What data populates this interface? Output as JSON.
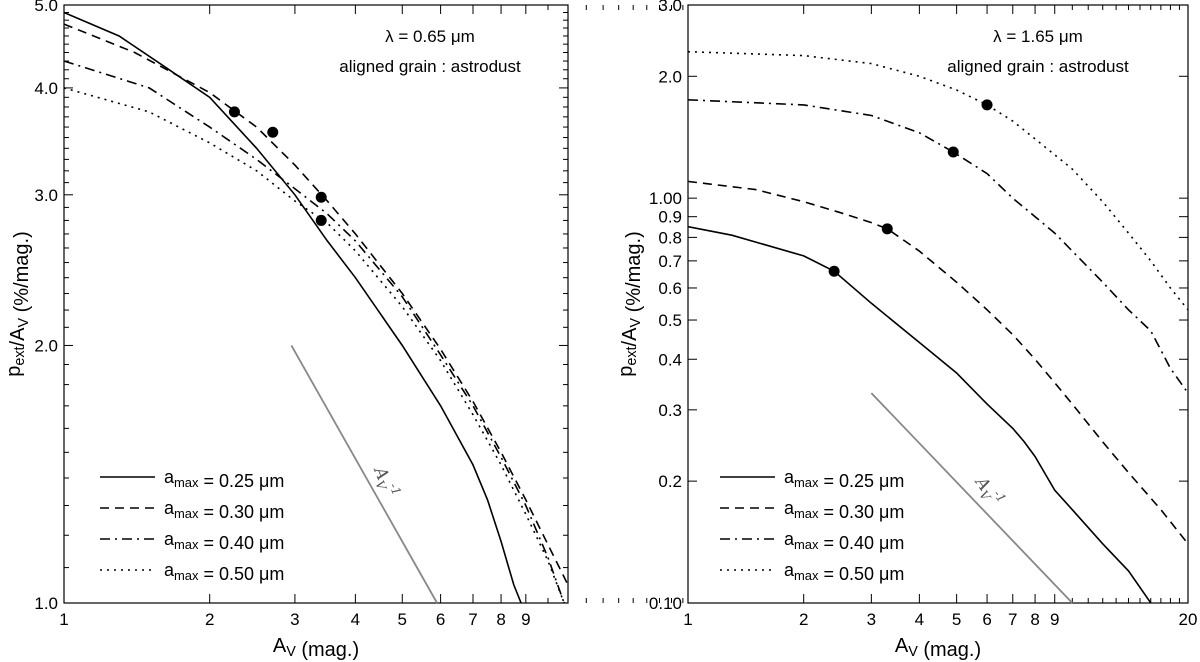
{
  "chart_data": [
    {
      "type": "line",
      "xscale": "log",
      "yscale": "log",
      "xlim": [
        1,
        11
      ],
      "ylim": [
        1.0,
        5.0
      ],
      "xlabel": "A_V (mag.)",
      "ylabel": "p_ext/A_V (%/mag.)",
      "xticks": [
        1,
        2,
        3,
        4,
        5,
        6,
        7,
        8,
        9
      ],
      "xtick_labels": [
        "1",
        "2",
        "3",
        "4",
        "5",
        "6",
        "7",
        "8",
        "9"
      ],
      "yticks": [
        1.0,
        2.0,
        3.0,
        4.0,
        5.0
      ],
      "ytick_labels": [
        "1.0",
        "2.0",
        "3.0",
        "4.0",
        "5.0"
      ],
      "annotations": [
        "λ = 0.65 μm",
        "aligned grain : astrodust"
      ],
      "reference_line": {
        "label": "A_V^-1",
        "x": [
          2.95,
          5.9
        ],
        "y": [
          2.0,
          1.0
        ]
      },
      "legend": [
        "a_max = 0.25 μm",
        "a_max = 0.30 μm",
        "a_max = 0.40 μm",
        "a_max = 0.50 μm"
      ],
      "series": [
        {
          "name": "a_max = 0.25 μm",
          "dash": "solid",
          "x": [
            1.0,
            1.3,
            1.6,
            2.0,
            2.5,
            3.0,
            3.5,
            4.0,
            5.0,
            6.0,
            7.0,
            7.5,
            8.0,
            8.5,
            8.8
          ],
          "y": [
            4.9,
            4.6,
            4.25,
            3.9,
            3.4,
            3.0,
            2.65,
            2.4,
            2.0,
            1.7,
            1.45,
            1.32,
            1.18,
            1.05,
            1.0
          ]
        },
        {
          "name": "a_max = 0.30 μm",
          "dash": "dashed",
          "x": [
            1.0,
            1.4,
            2.0,
            2.5,
            3.0,
            3.5,
            4.0,
            5.0,
            6.0,
            7.0,
            8.0,
            9.0,
            10.0,
            11.0
          ],
          "y": [
            4.75,
            4.4,
            3.95,
            3.6,
            3.25,
            2.95,
            2.7,
            2.3,
            1.98,
            1.72,
            1.5,
            1.32,
            1.17,
            1.05
          ]
        },
        {
          "name": "a_max = 0.40 μm",
          "dash": "dashdot",
          "x": [
            1.0,
            1.5,
            2.0,
            2.5,
            3.0,
            3.5,
            4.0,
            5.0,
            6.0,
            7.0,
            8.0,
            9.0,
            10.0,
            10.8
          ],
          "y": [
            4.3,
            4.0,
            3.6,
            3.3,
            3.05,
            2.85,
            2.65,
            2.28,
            1.95,
            1.7,
            1.48,
            1.3,
            1.13,
            1.0
          ]
        },
        {
          "name": "a_max = 0.50 μm",
          "dash": "dotted",
          "x": [
            1.0,
            1.5,
            2.0,
            2.5,
            3.0,
            3.5,
            4.0,
            5.0,
            6.0,
            7.0,
            8.0,
            9.0,
            10.0,
            10.8
          ],
          "y": [
            4.0,
            3.75,
            3.45,
            3.2,
            2.95,
            2.78,
            2.58,
            2.22,
            1.92,
            1.66,
            1.45,
            1.27,
            1.12,
            1.0
          ]
        }
      ],
      "markers": [
        {
          "series": "a_max = 0.25 μm",
          "x": 3.4,
          "y": 2.8
        },
        {
          "series": "a_max = 0.30 μm",
          "x": 2.7,
          "y": 3.55
        },
        {
          "series": "a_max = 0.40 μm",
          "x": 2.25,
          "y": 3.75
        },
        {
          "series": "a_max = 0.50 μm",
          "x": 3.4,
          "y": 2.98
        }
      ]
    },
    {
      "type": "line",
      "xscale": "log",
      "yscale": "log",
      "xlim": [
        1,
        20
      ],
      "ylim": [
        0.1,
        3.0
      ],
      "xlabel": "A_V (mag.)",
      "ylabel": "p_ext/A_V (%/mag.)",
      "xticks": [
        1,
        2,
        3,
        4,
        5,
        6,
        7,
        8,
        9,
        20
      ],
      "xtick_labels": [
        "1",
        "2",
        "3",
        "4",
        "5",
        "6",
        "7",
        "8",
        "9",
        "20"
      ],
      "yticks": [
        0.1,
        0.2,
        0.3,
        0.4,
        0.5,
        0.6,
        0.7,
        0.8,
        0.9,
        1.0,
        2.0,
        3.0
      ],
      "ytick_labels": [
        "0.10",
        "0.2",
        "0.3",
        "0.4",
        "0.5",
        "0.6",
        "0.7",
        "0.8",
        "0.9",
        "1.00",
        "2.0",
        "3.0"
      ],
      "annotations": [
        "λ = 1.65 μm",
        "aligned grain : astrodust"
      ],
      "reference_line": {
        "label": "A_V^-1",
        "x": [
          3.0,
          10.0
        ],
        "y": [
          0.33,
          0.1
        ]
      },
      "legend": [
        "a_max = 0.25 μm",
        "a_max = 0.30 μm",
        "a_max = 0.40 μm",
        "a_max = 0.50 μm"
      ],
      "series": [
        {
          "name": "a_max = 0.25 μm",
          "dash": "solid",
          "x": [
            1.0,
            1.3,
            2.0,
            2.4,
            3.0,
            4.0,
            5.0,
            6.0,
            7.0,
            7.5,
            8.0,
            9.0,
            10.0,
            12.0,
            14.0,
            16.0
          ],
          "y": [
            0.85,
            0.81,
            0.72,
            0.66,
            0.55,
            0.44,
            0.37,
            0.31,
            0.27,
            0.25,
            0.23,
            0.19,
            0.17,
            0.14,
            0.12,
            0.1
          ]
        },
        {
          "name": "a_max = 0.30 μm",
          "dash": "dashed",
          "x": [
            1.0,
            1.5,
            2.0,
            2.5,
            3.0,
            3.3,
            4.0,
            5.0,
            6.0,
            7.0,
            8.0,
            9.0,
            10.0,
            12.0,
            14.0,
            17.0,
            20.0
          ],
          "y": [
            1.1,
            1.05,
            0.98,
            0.92,
            0.87,
            0.84,
            0.74,
            0.62,
            0.53,
            0.46,
            0.4,
            0.35,
            0.31,
            0.25,
            0.21,
            0.17,
            0.14
          ]
        },
        {
          "name": "a_max = 0.40 μm",
          "dash": "dashdot",
          "x": [
            1.0,
            2.0,
            3.0,
            4.0,
            4.9,
            6.0,
            7.0,
            8.0,
            9.0,
            10.0,
            12.0,
            14.0,
            16.0,
            18.0,
            20.0
          ],
          "y": [
            1.75,
            1.7,
            1.6,
            1.45,
            1.3,
            1.15,
            1.0,
            0.9,
            0.82,
            0.74,
            0.62,
            0.53,
            0.47,
            0.38,
            0.33
          ]
        },
        {
          "name": "a_max = 0.50 μm",
          "dash": "dotted",
          "x": [
            1.0,
            2.0,
            3.0,
            4.0,
            5.0,
            6.0,
            7.0,
            8.0,
            9.0,
            10.0,
            12.0,
            14.0,
            16.0,
            18.0,
            20.0
          ],
          "y": [
            2.3,
            2.25,
            2.15,
            2.0,
            1.85,
            1.7,
            1.55,
            1.4,
            1.28,
            1.18,
            0.98,
            0.82,
            0.7,
            0.6,
            0.53
          ]
        }
      ],
      "markers": [
        {
          "series": "a_max = 0.25 μm",
          "x": 2.4,
          "y": 0.66
        },
        {
          "series": "a_max = 0.30 μm",
          "x": 3.3,
          "y": 0.84
        },
        {
          "series": "a_max = 0.40 μm",
          "x": 4.9,
          "y": 1.3
        },
        {
          "series": "a_max = 0.50 μm",
          "x": 6.0,
          "y": 1.7
        }
      ]
    }
  ]
}
